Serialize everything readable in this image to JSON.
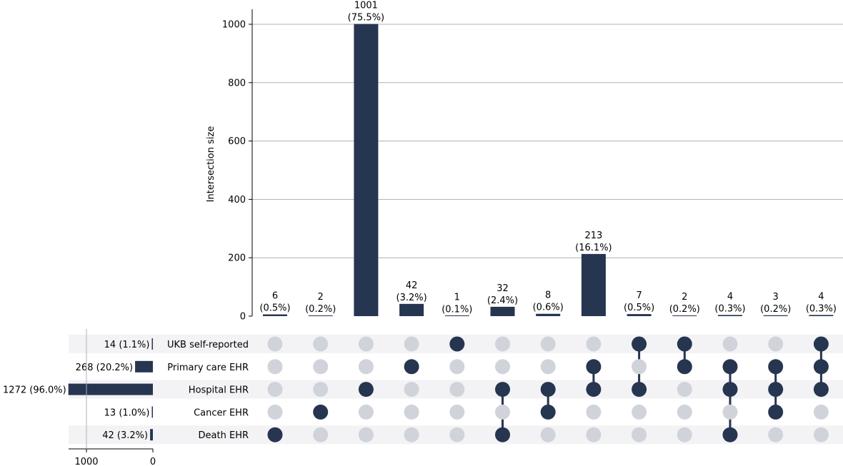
{
  "chart_data": {
    "type": "upset",
    "ylabel": "Intersection size",
    "ylim": [
      0,
      1050
    ],
    "yticks": [
      0,
      200,
      400,
      600,
      800,
      1000
    ],
    "grid": true,
    "bar_color": "#263550",
    "inactive_dot_color": "#d1d3da",
    "band_color": "#f3f3f5",
    "sets": [
      {
        "name": "UKB self-reported",
        "size": 14,
        "label": "14 (1.1%)"
      },
      {
        "name": "Primary care EHR",
        "size": 268,
        "label": "268 (20.2%)"
      },
      {
        "name": "Hospital EHR",
        "size": 1272,
        "label": "1272 (96.0%)"
      },
      {
        "name": "Cancer EHR",
        "size": 13,
        "label": "13 (1.0%)"
      },
      {
        "name": "Death EHR",
        "size": 42,
        "label": "42 (3.2%)"
      }
    ],
    "set_size_axis": {
      "ticks": [
        1000,
        0
      ]
    },
    "intersections": [
      {
        "count": 6,
        "pct": "(0.5%)",
        "members": [
          4
        ]
      },
      {
        "count": 2,
        "pct": "(0.2%)",
        "members": [
          3
        ]
      },
      {
        "count": 1001,
        "pct": "(75.5%)",
        "members": [
          2
        ]
      },
      {
        "count": 42,
        "pct": "(3.2%)",
        "members": [
          1
        ]
      },
      {
        "count": 1,
        "pct": "(0.1%)",
        "members": [
          0
        ]
      },
      {
        "count": 32,
        "pct": "(2.4%)",
        "members": [
          2,
          4
        ]
      },
      {
        "count": 8,
        "pct": "(0.6%)",
        "members": [
          2,
          3
        ]
      },
      {
        "count": 213,
        "pct": "(16.1%)",
        "members": [
          1,
          2
        ]
      },
      {
        "count": 7,
        "pct": "(0.5%)",
        "members": [
          0,
          2
        ]
      },
      {
        "count": 2,
        "pct": "(0.2%)",
        "members": [
          0,
          1
        ]
      },
      {
        "count": 4,
        "pct": "(0.3%)",
        "members": [
          1,
          2,
          4
        ]
      },
      {
        "count": 3,
        "pct": "(0.2%)",
        "members": [
          1,
          2,
          3
        ]
      },
      {
        "count": 4,
        "pct": "(0.3%)",
        "members": [
          0,
          1,
          2
        ]
      }
    ]
  }
}
